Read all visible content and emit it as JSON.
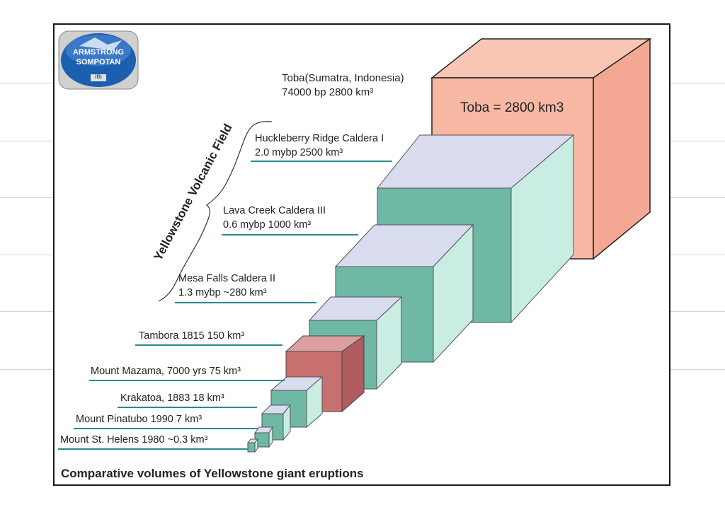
{
  "logo": {
    "line1": "ARMSTRONG",
    "line2": "SOMPOTAN",
    "mark": "itb",
    "colors": {
      "sky": "#3a78c8",
      "sea": "#1c5fae",
      "ring": "#d0d0d0"
    }
  },
  "title_vertical": "Yellowstone Volcanic Field",
  "caption": "Comparative volumes of Yellowstone giant eruptions",
  "toba": {
    "line1": "Toba(Sumatra, Indonesia)",
    "line2": "74000 bp    2800 km³",
    "cube_label": "Toba = 2800 km3"
  },
  "labels": {
    "huckleberry": {
      "line1": "Huckleberry Ridge Caldera I",
      "line2": "2.0 mybp 2500 km³"
    },
    "lava_creek": {
      "line1": "Lava Creek Caldera III",
      "line2": "0.6 mybp 1000 km³"
    },
    "mesa_falls": {
      "line1": "Mesa Falls Caldera II",
      "line2": "1.3 mybp ~280 km³"
    },
    "tambora": "Tambora  1815 150 km³",
    "mazama": "Mount Mazama, 7000 yrs 75 km³",
    "krakatoa": "Krakatoa, 1883 18 km³",
    "pinatubo": "Mount Pinatubo 1990 7 km³",
    "st_helens": "Mount St. Helens 1980 ~0.3 km³"
  },
  "colors": {
    "toba_front": "#f7b8a4",
    "toba_side": "#f4a893",
    "toba_top": "#f9c6b6",
    "teal_front": "#6fb8a6",
    "teal_side": "#c9ece3",
    "teal_top": "#d9dcef",
    "mazama_front": "#c87070",
    "mazama_side": "#b05c60",
    "mazama_top": "#dca0a0",
    "underline": "#2a8a8a"
  }
}
